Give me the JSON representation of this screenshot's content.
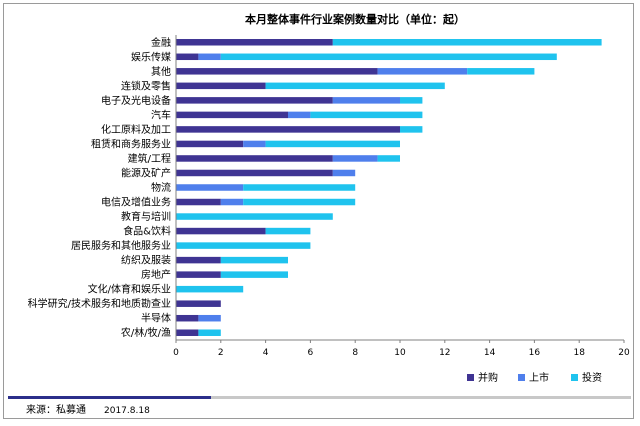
{
  "chart_data": {
    "type": "bar",
    "orientation": "horizontal",
    "stacked": true,
    "title": "本月整体事件行业案例数量对比（单位：起）",
    "categories": [
      "金融",
      "娱乐传媒",
      "其他",
      "连锁及零售",
      "电子及光电设备",
      "汽车",
      "化工原料及加工",
      "租赁和商务服务业",
      "建筑/工程",
      "能源及矿产",
      "物流",
      "电信及增值业务",
      "教育与培训",
      "食品&饮料",
      "居民服务和其他服务业",
      "纺织及服装",
      "房地产",
      "文化/体育和娱乐业",
      "科学研究/技术服务和地质勘查业",
      "半导体",
      "农/林/牧/渔"
    ],
    "series": [
      {
        "name": "并购",
        "color": "#3f3493",
        "values": [
          7,
          1,
          9,
          4,
          7,
          5,
          10,
          3,
          7,
          7,
          0,
          2,
          0,
          4,
          0,
          2,
          2,
          0,
          2,
          1,
          1
        ]
      },
      {
        "name": "上市",
        "color": "#4f7fec",
        "values": [
          0,
          1,
          4,
          0,
          3,
          1,
          0,
          1,
          2,
          1,
          3,
          1,
          0,
          0,
          0,
          0,
          0,
          0,
          0,
          1,
          0
        ]
      },
      {
        "name": "投资",
        "color": "#1fc3ee",
        "values": [
          12,
          15,
          3,
          8,
          1,
          5,
          1,
          6,
          1,
          0,
          5,
          5,
          7,
          2,
          6,
          3,
          3,
          3,
          0,
          0,
          1
        ]
      }
    ],
    "xlim": [
      0,
      20
    ],
    "xticks": [
      "0",
      "2",
      "4",
      "6",
      "8",
      "10",
      "12",
      "14",
      "16",
      "18",
      "20"
    ],
    "grid": false,
    "legend_position": "bottom-right"
  },
  "footer": {
    "source": "来源：私募通",
    "date": "2017.8.18"
  }
}
